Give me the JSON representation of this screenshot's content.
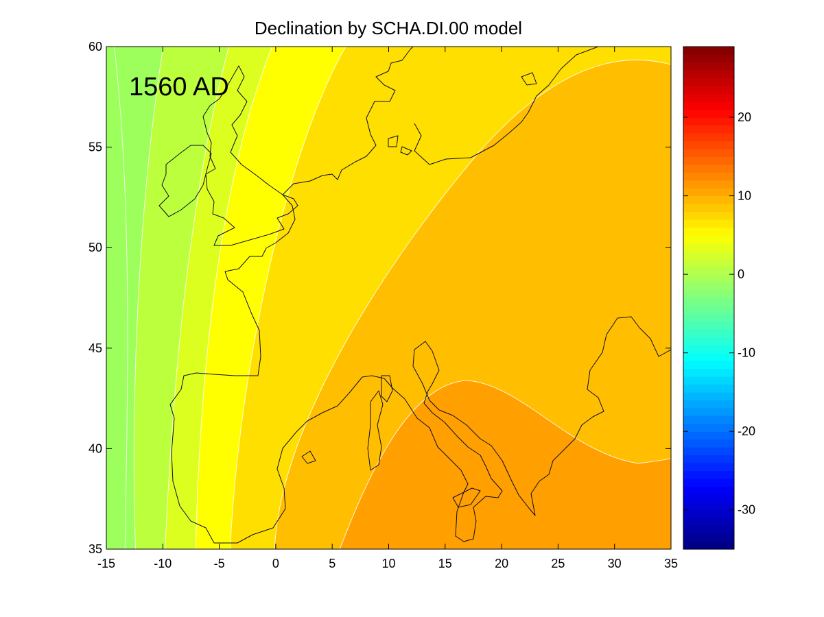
{
  "chart_data": {
    "type": "heatmap",
    "title": "Declination by SCHA.DI.00 model",
    "annotation": "1560 AD",
    "xlabel": "",
    "ylabel": "",
    "xlim": [
      -15,
      35
    ],
    "ylim": [
      35,
      60
    ],
    "x_ticks": [
      -15,
      -10,
      -5,
      0,
      5,
      10,
      15,
      20,
      25,
      30,
      35
    ],
    "y_ticks": [
      35,
      40,
      45,
      50,
      55,
      60
    ],
    "colorbar": {
      "colormap": "jet",
      "range": [
        -35,
        29
      ],
      "ticks": [
        20,
        10,
        0,
        -10,
        -20,
        -30
      ]
    },
    "contour_interval": 2,
    "contour_bands": [
      {
        "level_range": [
          -2,
          0
        ],
        "color": "#9cff5c"
      },
      {
        "level_range": [
          0,
          2
        ],
        "color": "#bcff3c"
      },
      {
        "level_range": [
          2,
          4
        ],
        "color": "#dcff20"
      },
      {
        "level_range": [
          4,
          6
        ],
        "color": "#ffff00"
      },
      {
        "level_range": [
          6,
          8
        ],
        "color": "#ffdf00"
      },
      {
        "level_range": [
          8,
          10
        ],
        "color": "#ffbf00"
      },
      {
        "level_range": [
          10,
          12
        ],
        "color": "#ff9f00"
      }
    ],
    "grid": false,
    "legend": "colorbar at right"
  }
}
